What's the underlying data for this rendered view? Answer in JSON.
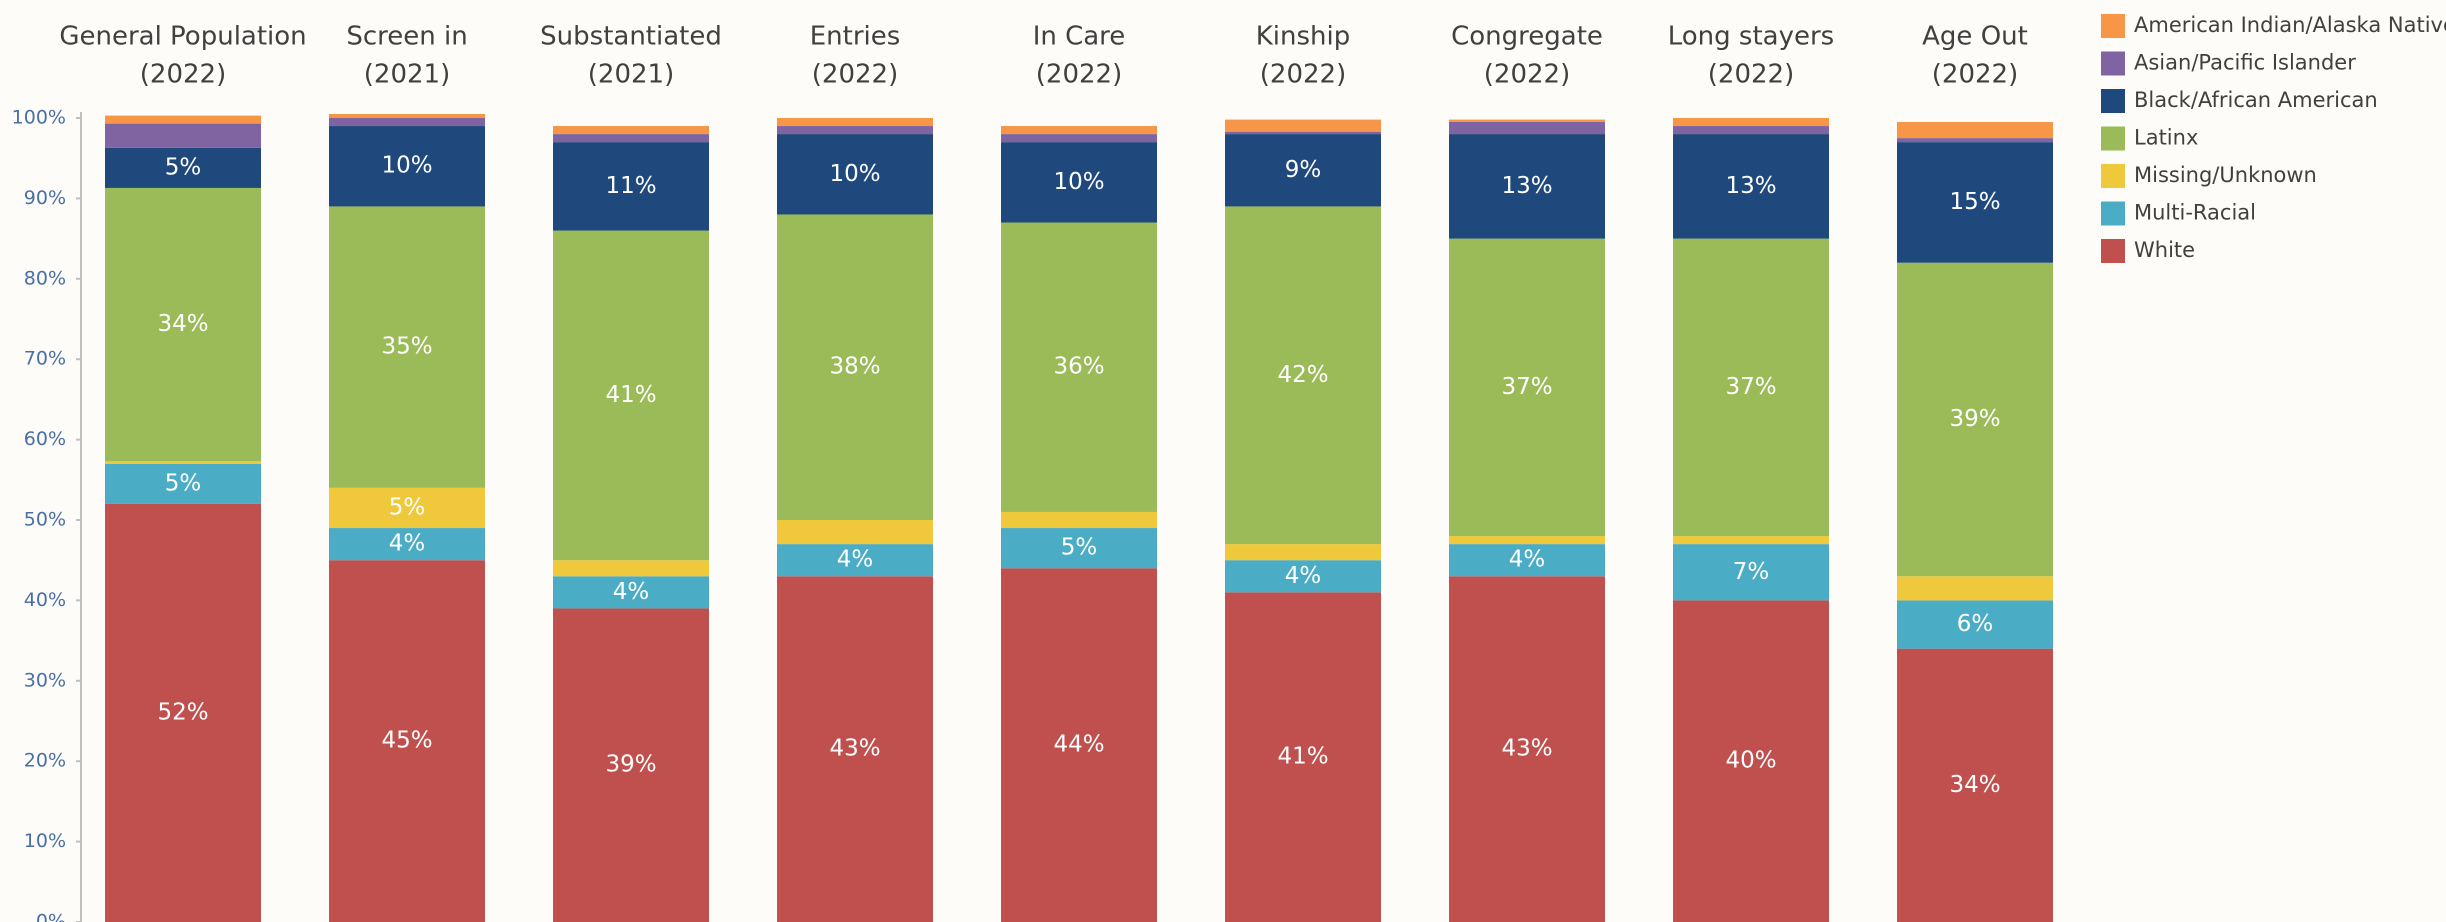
{
  "chart_data": {
    "type": "stacked_bar",
    "categories": [
      [
        "General Population",
        "(2022)"
      ],
      [
        "Screen in",
        "(2021)"
      ],
      [
        "Substantiated",
        "(2021)"
      ],
      [
        "Entries",
        "(2022)"
      ],
      [
        "In Care",
        "(2022)"
      ],
      [
        "Kinship",
        "(2022)"
      ],
      [
        "Congregate",
        "(2022)"
      ],
      [
        "Long stayers",
        "(2022)"
      ],
      [
        "Age Out",
        "(2022)"
      ]
    ],
    "ylim": [
      0,
      100
    ],
    "yticks": [
      {
        "value": 0,
        "label": "0%"
      },
      {
        "value": 10,
        "label": "10%"
      },
      {
        "value": 20,
        "label": "20%"
      },
      {
        "value": 30,
        "label": "30%"
      },
      {
        "value": 40,
        "label": "40%"
      },
      {
        "value": 50,
        "label": "50%"
      },
      {
        "value": 60,
        "label": "60%"
      },
      {
        "value": 70,
        "label": "70%"
      },
      {
        "value": 80,
        "label": "80%"
      },
      {
        "value": 90,
        "label": "90%"
      },
      {
        "value": 100,
        "label": "100%"
      }
    ],
    "legend": "right",
    "series": [
      {
        "name": "White",
        "color": "#c0504d",
        "values": [
          52,
          45,
          39,
          43,
          44,
          41,
          43,
          40,
          34
        ],
        "value_labels": [
          "52%",
          "45%",
          "39%",
          "43%",
          "44%",
          "41%",
          "43%",
          "40%",
          "34%"
        ]
      },
      {
        "name": "Multi-Racial",
        "color": "#4bacc6",
        "values": [
          5,
          4,
          4,
          4,
          5,
          4,
          4,
          7,
          6
        ],
        "value_labels": [
          "5%",
          "4%",
          "4%",
          "4%",
          "5%",
          "4%",
          "4%",
          "7%",
          "6%"
        ]
      },
      {
        "name": "Missing/Unknown",
        "color": "#f0c83c",
        "values": [
          0.3,
          5,
          2,
          3,
          2,
          2,
          1,
          1,
          3
        ],
        "value_labels": [
          null,
          "5%",
          null,
          null,
          null,
          null,
          null,
          null,
          null
        ]
      },
      {
        "name": "Latinx",
        "color": "#9bbb59",
        "values": [
          34,
          35,
          41,
          38,
          36,
          42,
          37,
          37,
          39
        ],
        "value_labels": [
          "34%",
          "35%",
          "41%",
          "38%",
          "36%",
          "42%",
          "37%",
          "37%",
          "39%"
        ]
      },
      {
        "name": "Black/African American",
        "color": "#1f497d",
        "values": [
          5,
          10,
          11,
          10,
          10,
          9,
          13,
          13,
          15
        ],
        "value_labels": [
          "5%",
          "10%",
          "11%",
          "10%",
          "10%",
          "9%",
          "13%",
          "13%",
          "15%"
        ]
      },
      {
        "name": "Asian/Pacific Islander",
        "color": "#8064a2",
        "values": [
          3,
          1,
          1,
          1,
          1,
          0.3,
          1.5,
          1,
          0.5
        ],
        "value_labels": [
          null,
          null,
          null,
          null,
          null,
          null,
          null,
          null,
          null
        ]
      },
      {
        "name": "American Indian/Alaska Native",
        "color": "#f79646",
        "values": [
          1,
          0.5,
          1,
          1,
          1,
          1.5,
          0.3,
          1,
          2
        ],
        "value_labels": [
          null,
          null,
          null,
          null,
          null,
          null,
          null,
          null,
          null
        ]
      }
    ]
  }
}
